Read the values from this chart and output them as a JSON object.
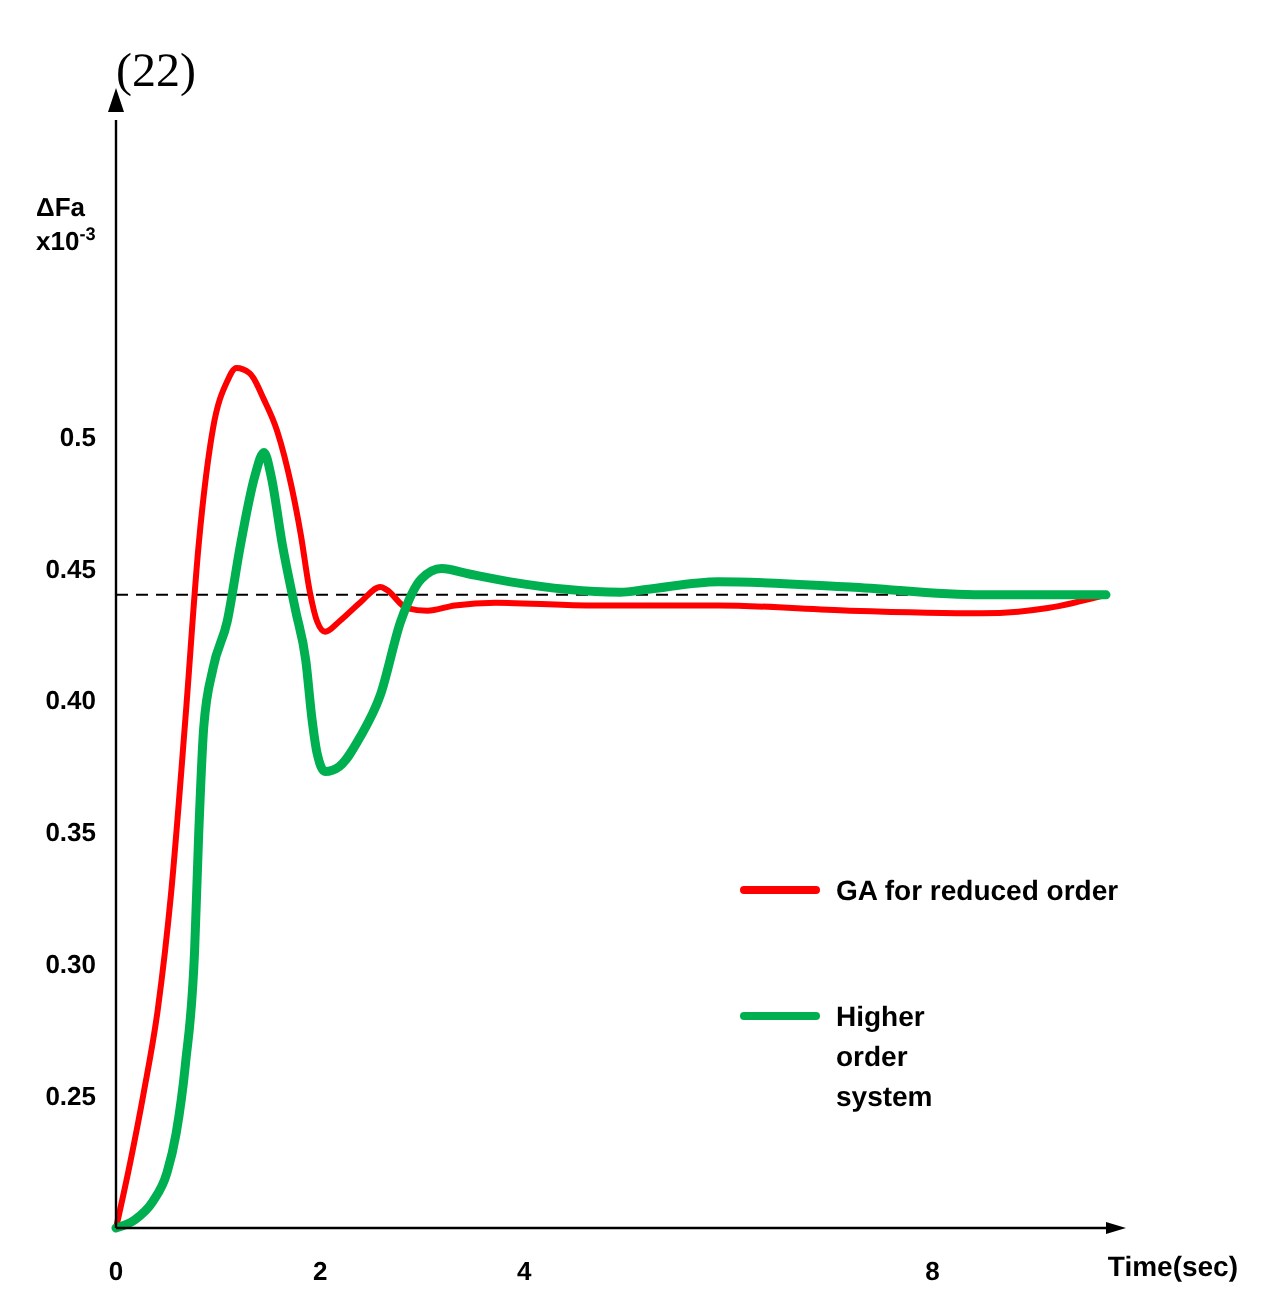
{
  "chart_data": {
    "type": "line",
    "title": "(22)",
    "xlabel": "Time(sec)",
    "ylabel": "ΔFa x10$^{-3}$",
    "xlim": [
      0,
      9.7
    ],
    "xticks": [
      0,
      2,
      4,
      8
    ],
    "ylim": [
      0.2,
      0.62
    ],
    "yticks": [
      {
        "value": 0.25,
        "label": "0.25"
      },
      {
        "value": 0.3,
        "label": "0.30"
      },
      {
        "value": 0.35,
        "label": "0.35"
      },
      {
        "value": 0.4,
        "label": "0.40"
      },
      {
        "value": 0.45,
        "label": "0.45"
      },
      {
        "value": 0.5,
        "label": "0.5"
      }
    ],
    "grid": false,
    "legend": "right",
    "marker": "none",
    "line_style": "solid",
    "ref_lines": [
      {
        "axis": "y",
        "value": 0.44,
        "color": "#000000",
        "line_style": "dashed"
      }
    ],
    "series": [
      {
        "name": "GA for reduced order",
        "color": "#ff0000",
        "x": [
          0,
          0.14,
          0.27,
          0.41,
          0.54,
          0.68,
          0.81,
          0.95,
          1.09,
          1.18,
          1.31,
          1.45,
          1.58,
          1.72,
          1.81,
          1.9,
          1.97,
          2.05,
          2.19,
          2.39,
          2.59,
          2.65,
          2.85,
          3.05,
          3.32,
          3.72,
          4.61,
          5.9,
          7.19,
          8.48,
          9.13,
          9.7
        ],
        "values": [
          0.2,
          0.225,
          0.251,
          0.283,
          0.327,
          0.393,
          0.459,
          0.503,
          0.521,
          0.526,
          0.524,
          0.514,
          0.502,
          0.481,
          0.463,
          0.441,
          0.43,
          0.426,
          0.43,
          0.437,
          0.443,
          0.442,
          0.435,
          0.434,
          0.436,
          0.437,
          0.436,
          0.436,
          0.434,
          0.433,
          0.435,
          0.44
        ]
      },
      {
        "name": "Higher order system",
        "color": "#00b050",
        "x": [
          0,
          0.18,
          0.36,
          0.5,
          0.59,
          0.68,
          0.77,
          0.81,
          0.86,
          0.95,
          1.09,
          1.22,
          1.36,
          1.45,
          1.52,
          1.63,
          1.76,
          1.86,
          1.92,
          1.97,
          2.05,
          2.19,
          2.39,
          2.59,
          2.79,
          2.99,
          3.19,
          3.45,
          3.85,
          4.94,
          5.19,
          5.9,
          7.19,
          8.48,
          9.7
        ],
        "values": [
          0.2,
          0.203,
          0.21,
          0.221,
          0.236,
          0.262,
          0.305,
          0.349,
          0.39,
          0.412,
          0.43,
          0.459,
          0.485,
          0.494,
          0.485,
          0.459,
          0.434,
          0.415,
          0.393,
          0.38,
          0.373,
          0.375,
          0.386,
          0.402,
          0.43,
          0.446,
          0.45,
          0.448,
          0.445,
          0.441,
          0.442,
          0.445,
          0.443,
          0.44,
          0.44
        ]
      }
    ]
  }
}
